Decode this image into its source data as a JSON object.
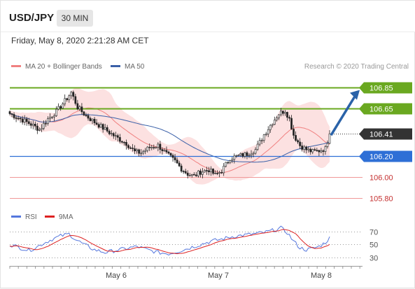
{
  "header": {
    "symbol": "USD/JPY",
    "timeframe": "30 MIN",
    "datetime": "Friday, May 8, 2020 2:21:28 AM CET"
  },
  "legend": {
    "ma20": "MA 20 + Bollinger Bands",
    "ma50": "MA 50",
    "credit": "Research © 2020 Trading Central"
  },
  "rsi_legend": {
    "rsi": "RSI",
    "ma9": "9MA"
  },
  "colors": {
    "ma20": "#f08080",
    "ma50": "#3a60a8",
    "band_fill": "#fbdcdc",
    "resistance": "#6aa820",
    "support_blue": "#2e6fd6",
    "support_red": "#f09898",
    "current": "#333333",
    "arrow": "#2a62a8",
    "candle": "#222222",
    "rsi": "#5577dd",
    "rsi_ma": "#dd2222"
  },
  "chart_data": [
    {
      "type": "candlestick",
      "title": "USD/JPY 30 MIN",
      "x_ticks": [
        "May 6",
        "May 7",
        "May 8"
      ],
      "ylim": [
        105.75,
        106.92
      ],
      "price_path": [
        [
          0,
          106.6
        ],
        [
          5,
          106.55
        ],
        [
          10,
          106.5
        ],
        [
          14,
          106.45
        ],
        [
          18,
          106.55
        ],
        [
          22,
          106.62
        ],
        [
          26,
          106.72
        ],
        [
          29,
          106.8
        ],
        [
          32,
          106.66
        ],
        [
          36,
          106.58
        ],
        [
          40,
          106.52
        ],
        [
          45,
          106.45
        ],
        [
          50,
          106.38
        ],
        [
          55,
          106.32
        ],
        [
          59,
          106.24
        ],
        [
          62,
          106.23
        ],
        [
          66,
          106.28
        ],
        [
          70,
          106.3
        ],
        [
          74,
          106.22
        ],
        [
          78,
          106.15
        ],
        [
          81,
          106.08
        ],
        [
          84,
          106.03
        ],
        [
          87,
          106.01
        ],
        [
          90,
          106.05
        ],
        [
          94,
          106.07
        ],
        [
          97,
          106.02
        ],
        [
          100,
          106.06
        ],
        [
          104,
          106.18
        ],
        [
          108,
          106.2
        ],
        [
          112,
          106.22
        ],
        [
          116,
          106.26
        ],
        [
          120,
          106.4
        ],
        [
          124,
          106.52
        ],
        [
          127,
          106.6
        ],
        [
          130,
          106.63
        ],
        [
          132,
          106.55
        ],
        [
          134,
          106.4
        ],
        [
          137,
          106.3
        ],
        [
          140,
          106.26
        ],
        [
          143,
          106.24
        ],
        [
          146,
          106.25
        ],
        [
          149,
          106.27
        ],
        [
          151,
          106.41
        ]
      ],
      "levels": [
        {
          "label": "106.85",
          "value": 106.85,
          "type": "resistance"
        },
        {
          "label": "106.65",
          "value": 106.65,
          "type": "resistance"
        },
        {
          "label": "106.41",
          "value": 106.41,
          "type": "current"
        },
        {
          "label": "106.20",
          "value": 106.2,
          "type": "support"
        },
        {
          "label": "106.00",
          "value": 106.0,
          "type": "support"
        },
        {
          "label": "105.80",
          "value": 105.8,
          "type": "support"
        }
      ],
      "series": [
        {
          "name": "MA 20 + Bollinger Bands"
        },
        {
          "name": "MA 50"
        }
      ],
      "projection": {
        "from": 106.41,
        "to": 106.85
      }
    },
    {
      "type": "line",
      "title": "RSI",
      "y_ticks": [
        70,
        50,
        30
      ],
      "ylim": [
        25,
        78
      ],
      "rsi_path": [
        [
          0,
          50
        ],
        [
          5,
          45
        ],
        [
          9,
          41
        ],
        [
          12,
          45
        ],
        [
          16,
          52
        ],
        [
          20,
          58
        ],
        [
          24,
          63
        ],
        [
          28,
          66
        ],
        [
          31,
          58
        ],
        [
          35,
          50
        ],
        [
          40,
          42
        ],
        [
          45,
          38
        ],
        [
          50,
          41
        ],
        [
          55,
          44
        ],
        [
          60,
          47
        ],
        [
          65,
          42
        ],
        [
          70,
          38
        ],
        [
          75,
          36
        ],
        [
          80,
          40
        ],
        [
          85,
          45
        ],
        [
          90,
          50
        ],
        [
          95,
          55
        ],
        [
          100,
          58
        ],
        [
          105,
          62
        ],
        [
          110,
          64
        ],
        [
          115,
          66
        ],
        [
          120,
          68
        ],
        [
          125,
          72
        ],
        [
          128,
          75
        ],
        [
          131,
          68
        ],
        [
          134,
          55
        ],
        [
          137,
          45
        ],
        [
          140,
          42
        ],
        [
          143,
          44
        ],
        [
          146,
          47
        ],
        [
          149,
          53
        ],
        [
          151,
          60
        ]
      ],
      "series": [
        {
          "name": "RSI"
        },
        {
          "name": "9MA"
        }
      ]
    }
  ]
}
